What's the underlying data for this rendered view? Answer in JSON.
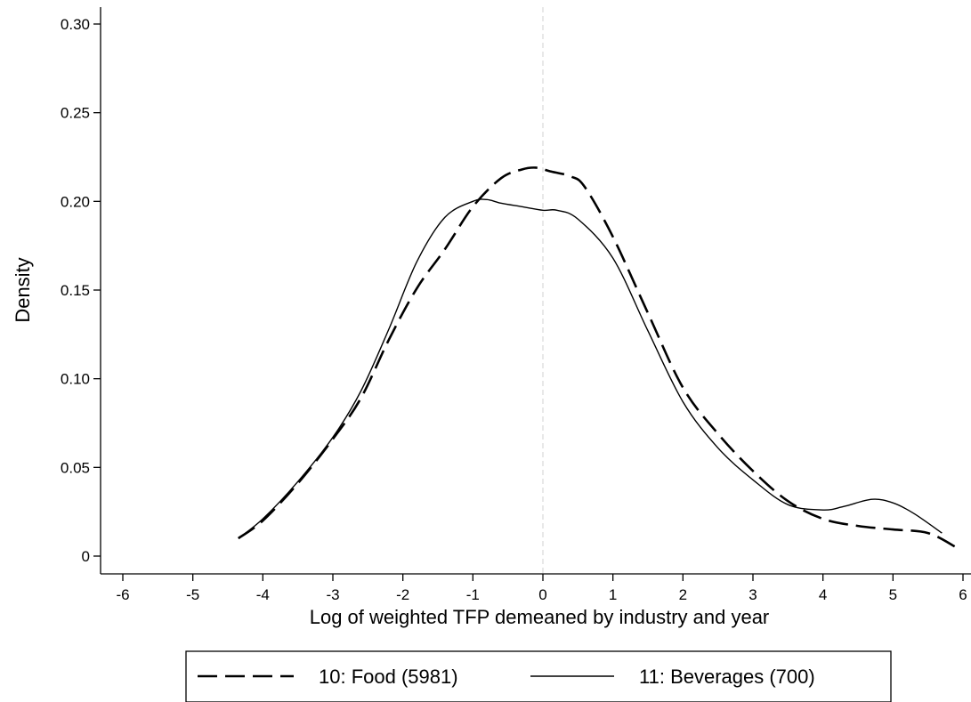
{
  "chart_data": {
    "type": "line",
    "xlabel": "Log of weighted TFP demeaned by industry and year",
    "ylabel": "Density",
    "xlim": [
      -6,
      6
    ],
    "ylim": [
      0,
      0.3
    ],
    "xticks": [
      "-6",
      "-5",
      "-4",
      "-3",
      "-2",
      "-1",
      "0",
      "1",
      "2",
      "3",
      "4",
      "5",
      "6"
    ],
    "yticks": [
      "0",
      "0.05",
      "0.10",
      "0.15",
      "0.20",
      "0.25",
      "0.30"
    ],
    "reference_line_x": 0,
    "grid": false,
    "legend_position": "bottom",
    "series": [
      {
        "name": "10: Food (5981)",
        "style": "dashed",
        "color": "#000000",
        "x": [
          -4.35,
          -4.0,
          -3.5,
          -3.0,
          -2.6,
          -2.2,
          -1.8,
          -1.4,
          -1.0,
          -0.6,
          -0.3,
          -0.1,
          0.1,
          0.4,
          0.6,
          1.0,
          1.5,
          2.0,
          2.5,
          3.0,
          3.5,
          4.0,
          4.5,
          5.0,
          5.5,
          5.9
        ],
        "y": [
          0.01,
          0.02,
          0.041,
          0.066,
          0.089,
          0.122,
          0.151,
          0.173,
          0.197,
          0.213,
          0.218,
          0.219,
          0.217,
          0.214,
          0.208,
          0.18,
          0.137,
          0.095,
          0.069,
          0.048,
          0.031,
          0.021,
          0.017,
          0.015,
          0.013,
          0.005
        ]
      },
      {
        "name": "11: Beverages (700)",
        "style": "solid",
        "color": "#000000",
        "x": [
          -4.35,
          -4.0,
          -3.5,
          -3.0,
          -2.6,
          -2.2,
          -1.8,
          -1.4,
          -1.0,
          -0.8,
          -0.6,
          -0.3,
          0.0,
          0.2,
          0.5,
          1.0,
          1.5,
          2.0,
          2.5,
          3.0,
          3.5,
          4.0,
          4.3,
          4.7,
          5.0,
          5.3,
          5.7
        ],
        "y": [
          0.01,
          0.021,
          0.042,
          0.067,
          0.093,
          0.128,
          0.166,
          0.191,
          0.2,
          0.201,
          0.199,
          0.197,
          0.195,
          0.195,
          0.19,
          0.168,
          0.127,
          0.087,
          0.061,
          0.043,
          0.029,
          0.026,
          0.028,
          0.032,
          0.03,
          0.024,
          0.013
        ]
      }
    ]
  }
}
